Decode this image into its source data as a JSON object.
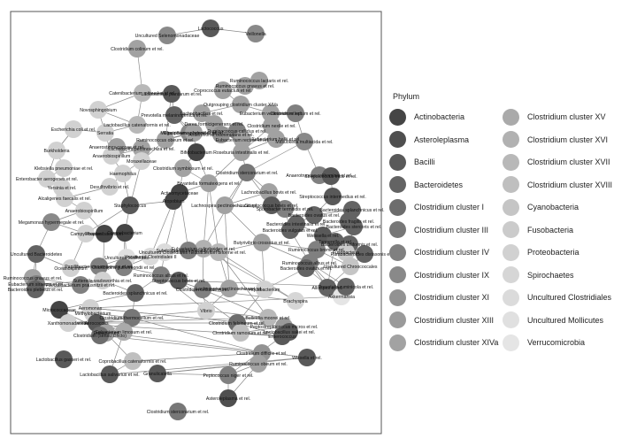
{
  "legend": {
    "title": "Phylum",
    "items": [
      {
        "label": "Actinobacteria",
        "color": "#454545"
      },
      {
        "label": "Asteroleplasma",
        "color": "#4f4f4f"
      },
      {
        "label": "Bacilli",
        "color": "#595959"
      },
      {
        "label": "Bacteroidetes",
        "color": "#636363"
      },
      {
        "label": "Clostridium cluster I",
        "color": "#6d6d6d"
      },
      {
        "label": "Clostridium cluster III",
        "color": "#777777"
      },
      {
        "label": "Clostridium cluster IV",
        "color": "#808080"
      },
      {
        "label": "Clostridium cluster IX",
        "color": "#898989"
      },
      {
        "label": "Clostridium cluster XI",
        "color": "#929292"
      },
      {
        "label": "Clostridium cluster XIII",
        "color": "#9a9a9a"
      },
      {
        "label": "Clostridium cluster XIVa",
        "color": "#a2a2a2"
      },
      {
        "label": "Clostridium cluster XV",
        "color": "#aaaaaa"
      },
      {
        "label": "Clostridium cluster XVI",
        "color": "#b1b1b1"
      },
      {
        "label": "Clostridium cluster XVII",
        "color": "#b8b8b8"
      },
      {
        "label": "Clostridium cluster XVIII",
        "color": "#bfbfbf"
      },
      {
        "label": "Cyanobacteria",
        "color": "#c5c5c5"
      },
      {
        "label": "Fusobacteria",
        "color": "#cbcbcb"
      },
      {
        "label": "Proteobacteria",
        "color": "#d1d1d1"
      },
      {
        "label": "Spirochaetes",
        "color": "#d6d6d6"
      },
      {
        "label": "Uncultured Clostridiales",
        "color": "#dbdbdb"
      },
      {
        "label": "Uncultured Mollicutes",
        "color": "#e0e0e0"
      },
      {
        "label": "Verrucomicrobia",
        "color": "#e5e5e5"
      }
    ]
  },
  "nodes": [
    {
      "label": "Lactococcus",
      "phylum": "Bacilli"
    },
    {
      "label": "Veillonella",
      "phylum": "Clostridium cluster IX"
    },
    {
      "label": "Uncultured Selenomonadaceae",
      "phylum": "Clostridium cluster IX"
    },
    {
      "label": "Clostridium colinum et rel.",
      "phylum": "Clostridium cluster XIVa"
    },
    {
      "label": "Ruminococcus lactaris et rel.",
      "phylum": "Clostridium cluster XIVa"
    },
    {
      "label": "Ruminococcus gnavus et rel.",
      "phylum": "Clostridium cluster XIVa"
    },
    {
      "label": "Coprococcus eutactus et rel.",
      "phylum": "Clostridium cluster XIVa"
    },
    {
      "label": "Catenibacterium mitsuokai et rel.",
      "phylum": "Clostridium cluster XVII"
    },
    {
      "label": "Lactobacillus plantarum et rel.",
      "phylum": "Bacilli"
    },
    {
      "label": "Outgrouping clostridium cluster XIVa",
      "phylum": "Clostridium cluster XIVa"
    },
    {
      "label": "Novosphingobium",
      "phylum": "Proteobacteria"
    },
    {
      "label": "Prevotella melaninogenica et rel.",
      "phylum": "Bacteroidetes"
    },
    {
      "label": "Lachnobacillus et rel.",
      "phylum": "Clostridium cluster XIVa"
    },
    {
      "label": "Eubacterium ventriosum et rel.",
      "phylum": "Clostridium cluster XIVa"
    },
    {
      "label": "Lactobacillus catenaformis et rel.",
      "phylum": "Clostridium cluster XVII"
    },
    {
      "label": "Clostridium leptum et rel.",
      "phylum": "Clostridium cluster IV"
    },
    {
      "label": "Serratia",
      "phylum": "Proteobacteria"
    },
    {
      "label": "Megasphaera elsdenii et rel.",
      "phylum": "Clostridium cluster IX"
    },
    {
      "label": "Dorea formicigenerans et rel.",
      "phylum": "Clostridium cluster XIVa"
    },
    {
      "label": "Clostridium nexile et rel.",
      "phylum": "Clostridium cluster XIVa"
    },
    {
      "label": "Ruminococcus callidus et rel.",
      "phylum": "Clostridium cluster IV"
    },
    {
      "label": "Eubacterium rectale et rel.",
      "phylum": "Clostridium cluster XIVa"
    },
    {
      "label": "Eubacterium hallii et rel.",
      "phylum": "Clostridium cluster XIVa"
    },
    {
      "label": "Anaerostipes caccae et rel.",
      "phylum": "Clostridium cluster XIVa"
    },
    {
      "label": "Ruminococcus obeum et rel.",
      "phylum": "Clostridium cluster XIVa"
    },
    {
      "label": "Clostridium sphenoides et rel.",
      "phylum": "Clostridium cluster XIVa"
    },
    {
      "label": "Lachnospira pectinoschiza et rel.",
      "phylum": "Clostridium cluster XIVa"
    },
    {
      "label": "Anaerovorax odorimutans et rel.",
      "phylum": "Clostridium cluster XI"
    },
    {
      "label": "Bifidobacterium",
      "phylum": "Actinobacteria"
    },
    {
      "label": "Escherichia coli et rel.",
      "phylum": "Proteobacteria"
    },
    {
      "label": "Mitsuokella multiacida et rel.",
      "phylum": "Clostridium cluster IX"
    },
    {
      "label": "Burkholderia",
      "phylum": "Proteobacteria"
    },
    {
      "label": "Anaerobiospirillum",
      "phylum": "Proteobacteria"
    },
    {
      "label": "Anaerotruncus colihominis et rel.",
      "phylum": "Clostridium cluster IV"
    },
    {
      "label": "Roseburia intestinalis et rel.",
      "phylum": "Clostridium cluster XIVa"
    },
    {
      "label": "Klebsiella pneumoniae et rel.",
      "phylum": "Proteobacteria"
    },
    {
      "label": "Enterobacter aerogenes et rel.",
      "phylum": "Proteobacteria"
    },
    {
      "label": "Haemophilus",
      "phylum": "Proteobacteria"
    },
    {
      "label": "Moraxellaceae",
      "phylum": "Proteobacteria"
    },
    {
      "label": "Clostridium symbiosum et rel.",
      "phylum": "Clostridium cluster XIVa"
    },
    {
      "label": "Clostridium stercorarium et rel.",
      "phylum": "Clostridium cluster III"
    },
    {
      "label": "Streptococcus mitis et rel.",
      "phylum": "Bacilli"
    },
    {
      "label": "Yersinia et rel.",
      "phylum": "Proteobacteria"
    },
    {
      "label": "Desulfovibrio et rel.",
      "phylum": "Proteobacteria"
    },
    {
      "label": "Bryantella formatexigens et rel.",
      "phylum": "Clostridium cluster XIVa"
    },
    {
      "label": "Lachnobacillus bovis et rel.",
      "phylum": "Clostridium cluster XIVa"
    },
    {
      "label": "Streptococcus intermedius et rel.",
      "phylum": "Bacilli"
    },
    {
      "label": "Alcaligenes faecalis et rel.",
      "phylum": "Proteobacteria"
    },
    {
      "label": "Actinomycetaceae",
      "phylum": "Actinobacteria"
    },
    {
      "label": "Staphylococcus",
      "phylum": "Bacilli"
    },
    {
      "label": "Atopobium",
      "phylum": "Actinobacteria"
    },
    {
      "label": "Lachnospira pectinoschiza et rel.",
      "phylum": "Clostridium cluster XIVa"
    },
    {
      "label": "Sporobacter termitidis et rel.",
      "phylum": "Clostridium cluster IV"
    },
    {
      "label": "Streptococcus bovis et rel.",
      "phylum": "Bacilli"
    },
    {
      "label": "Bacteroides ovatus et rel.",
      "phylum": "Bacteroidetes"
    },
    {
      "label": "Bacteroides splanchnicus et rel.",
      "phylum": "Bacteroidetes"
    },
    {
      "label": "Anaerobiospirillum",
      "phylum": "Proteobacteria"
    },
    {
      "label": "Bacteroides intestinalis et rel.",
      "phylum": "Bacteroidetes"
    },
    {
      "label": "Bacteroides fragilis et rel.",
      "phylum": "Bacteroidetes"
    },
    {
      "label": "Bacteroides vulgatus et rel.",
      "phylum": "Bacteroidetes"
    },
    {
      "label": "Bacteroides stercoris et rel.",
      "phylum": "Bacteroidetes"
    },
    {
      "label": "Megamonas hypermegale et rel.",
      "phylum": "Clostridium cluster IX"
    },
    {
      "label": "Weissella et rel.",
      "phylum": "Bacilli"
    },
    {
      "label": "Campylobacter",
      "phylum": "Proteobacteria"
    },
    {
      "label": "Propionibacterium",
      "phylum": "Actinobacteria"
    },
    {
      "label": "Corynebacterium",
      "phylum": "Actinobacteria"
    },
    {
      "label": "Tannerella et rel.",
      "phylum": "Bacteroidetes"
    },
    {
      "label": "Bacteroides uniformis et rel.",
      "phylum": "Bacteroidetes"
    },
    {
      "label": "Fusobacteria",
      "phylum": "Fusobacteria"
    },
    {
      "label": "Parabacteroides distasonis et rel.",
      "phylum": "Bacteroidetes"
    },
    {
      "label": "Butyrivibrio crossotus et rel.",
      "phylum": "Clostridium cluster XIVa"
    },
    {
      "label": "Eubacterium cylindroides et rel.",
      "phylum": "Clostridium cluster XVI"
    },
    {
      "label": "Ruminococcus bromii et rel.",
      "phylum": "Clostridium cluster IV"
    },
    {
      "label": "Subdoligranulum variable at rel.",
      "phylum": "Clostridium cluster IV"
    },
    {
      "label": "Eubacterium biforme et rel.",
      "phylum": "Clostridium cluster XVII"
    },
    {
      "label": "Uncultured Clostridiales I",
      "phylum": "Uncultured Clostridiales"
    },
    {
      "label": "Uncultured Clostridiales II",
      "phylum": "Uncultured Clostridiales"
    },
    {
      "label": "Uncultured Mollicutes",
      "phylum": "Uncultured Mollicutes"
    },
    {
      "label": "Uncultured Chroococcales",
      "phylum": "Cyanobacteria"
    },
    {
      "label": "Uncultured Bacteroidetes",
      "phylum": "Bacteroidetes"
    },
    {
      "label": "Oceanospirillum",
      "phylum": "Proteobacteria"
    },
    {
      "label": "Ruminococcus albus et rel.",
      "phylum": "Clostridium cluster IV"
    },
    {
      "label": "Ruminococcus gnavus et rel.",
      "phylum": "Clostridium cluster XIVa"
    },
    {
      "label": "Faecalibacterium prausnitzii et rel.",
      "phylum": "Clostridium cluster IV"
    },
    {
      "label": "Eubacterium siraeum et rel.",
      "phylum": "Clostridium cluster IV"
    },
    {
      "label": "Bacteroides plebeius et rel.",
      "phylum": "Bacteroidetes"
    },
    {
      "label": "Papillibacter cinnamivorans et rel.",
      "phylum": "Clostridium cluster IV"
    },
    {
      "label": "Oscillospira guillermondii et rel.",
      "phylum": "Clostridium cluster IV"
    },
    {
      "label": "Sutterella wadsworthia et rel.",
      "phylum": "Proteobacteria"
    },
    {
      "label": "Allistipes et rel.",
      "phylum": "Bacteroidetes"
    },
    {
      "label": "Bacteroides splanchnicus et rel.",
      "phylum": "Bacteroidetes"
    },
    {
      "label": "Ruminococcus albus et rel.",
      "phylum": "Clostridium cluster IV"
    },
    {
      "label": "Clostridium cellulosi et rel.",
      "phylum": "Clostridium cluster IV"
    },
    {
      "label": "Lachnospira pectinoschiza et rel.",
      "phylum": "Clostridium cluster XIVa"
    },
    {
      "label": "Aquabacterium",
      "phylum": "Proteobacteria"
    },
    {
      "label": "Akkermansia",
      "phylum": "Verrucomicrobia"
    },
    {
      "label": "Vibrio",
      "phylum": "Proteobacteria"
    },
    {
      "label": "Bulleidia moorei et rel.",
      "phylum": "Clostridium cluster XVII"
    },
    {
      "label": "Micrococcaceae",
      "phylum": "Actinobacteria"
    },
    {
      "label": "Aeromonas",
      "phylum": "Proteobacteria"
    },
    {
      "label": "Methylobacterium",
      "phylum": "Proteobacteria"
    },
    {
      "label": "Clostridium thermocellum et rel.",
      "phylum": "Clostridium cluster III"
    },
    {
      "label": "Clostridium felsineum et rel.",
      "phylum": "Clostridium cluster I"
    },
    {
      "label": "Aerococcus",
      "phylum": "Bacilli"
    },
    {
      "label": "Xanthomonadaceae",
      "phylum": "Proteobacteria"
    },
    {
      "label": "Eubacterium",
      "phylum": "Clostridium cluster XIVa"
    },
    {
      "label": "Peptostreptococcus micros et rel.",
      "phylum": "Clostridium cluster XIII"
    },
    {
      "label": "Eubacterium limosum et rel.",
      "phylum": "Clostridium cluster XV"
    },
    {
      "label": "Clostridium (sensu stricto)",
      "phylum": "Clostridium cluster I"
    },
    {
      "label": "Clostridium ramosum et rel.",
      "phylum": "Clostridium cluster XVIII"
    },
    {
      "label": "Enterococcus",
      "phylum": "Bacilli"
    },
    {
      "label": "Lactobacillus gasseri et rel.",
      "phylum": "Bacilli"
    },
    {
      "label": "Clostridium difficile et rel.",
      "phylum": "Clostridium cluster XI"
    },
    {
      "label": "Coprobacillus catenaformis et rel.",
      "phylum": "Clostridium cluster XVIII"
    },
    {
      "label": "Granulicatella",
      "phylum": "Bacilli"
    },
    {
      "label": "Lactobacillus salivarius et rel.",
      "phylum": "Bacilli"
    },
    {
      "label": "Peptococcus niger et rel.",
      "phylum": "Clostridium cluster IV"
    },
    {
      "label": "Wissella et rel.",
      "phylum": "Bacilli"
    },
    {
      "label": "Ruminococcus obeum et rel.",
      "phylum": "Clostridium cluster XIVa"
    },
    {
      "label": "Asteroleplasma et rel.",
      "phylum": "Asteroleplasma"
    },
    {
      "label": "Clostridium stercorarium et rel.",
      "phylum": "Clostridium cluster III"
    },
    {
      "label": "Bacteroides ovatus et rel.",
      "phylum": "Bacteroidetes"
    },
    {
      "label": "Prevotella ruminicola et rel.",
      "phylum": "Bacteroidetes"
    },
    {
      "label": "Brachyspira",
      "phylum": "Spirochaetes"
    },
    {
      "label": "Streptococcus bovis et rel.",
      "phylum": "Bacilli"
    },
    {
      "label": "Lactobacillus sakei et rel.",
      "phylum": "Bacilli"
    },
    {
      "label": "Ruminococcus gnavus et rel.",
      "phylum": "Clostridium cluster XIVa"
    }
  ]
}
